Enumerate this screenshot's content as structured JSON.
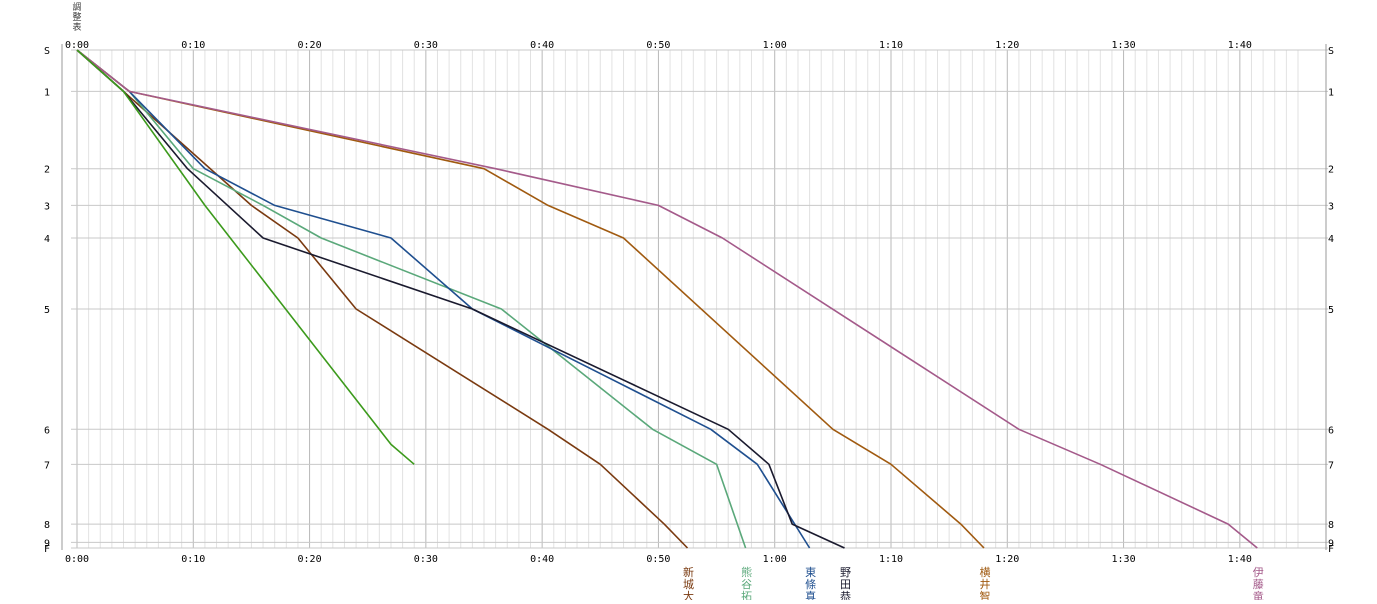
{
  "chart_data": {
    "type": "line",
    "title": "",
    "xlabel": "",
    "ylabel": "",
    "x_unit": "elapsed time (h:mm)",
    "xlim": [
      0,
      105
    ],
    "x_ticks": [
      {
        "value": 0,
        "label": "0:00"
      },
      {
        "value": 10,
        "label": "0:10"
      },
      {
        "value": 20,
        "label": "0:20"
      },
      {
        "value": 30,
        "label": "0:30"
      },
      {
        "value": 40,
        "label": "0:40"
      },
      {
        "value": 50,
        "label": "0:50"
      },
      {
        "value": 60,
        "label": "1:00"
      },
      {
        "value": 70,
        "label": "1:10"
      },
      {
        "value": 80,
        "label": "1:20"
      },
      {
        "value": 90,
        "label": "1:30"
      },
      {
        "value": 100,
        "label": "1:40"
      }
    ],
    "y_stations": [
      {
        "label": "S",
        "dist": 0
      },
      {
        "label": "1",
        "dist": 0.52
      },
      {
        "label": "2",
        "dist": 1.49
      },
      {
        "label": "3",
        "dist": 1.95
      },
      {
        "label": "4",
        "dist": 2.36
      },
      {
        "label": "5",
        "dist": 3.25
      },
      {
        "label": "6",
        "dist": 4.76
      },
      {
        "label": "7",
        "dist": 5.2
      },
      {
        "label": "8",
        "dist": 5.95
      },
      {
        "label": "9",
        "dist": 6.18
      },
      {
        "label": "F",
        "dist": 6.25
      }
    ],
    "grid": true,
    "legend": "runner names written vertically below each line's finish",
    "series": [
      {
        "name": "新城大",
        "color": "#7a3a10",
        "x": [
          0,
          4,
          15,
          19,
          24,
          40.5,
          45,
          50.5,
          52.5
        ],
        "y": [
          0,
          0.52,
          1.95,
          2.36,
          3.25,
          4.76,
          5.2,
          5.95,
          6.25
        ]
      },
      {
        "name": "熊谷拓",
        "color": "#5aa87a",
        "x": [
          0,
          4.5,
          10,
          16,
          21,
          36.5,
          49.5,
          55,
          57.5
        ],
        "y": [
          0,
          0.52,
          1.49,
          1.95,
          2.36,
          3.25,
          4.76,
          5.2,
          6.25
        ]
      },
      {
        "name": "東條真",
        "color": "#1f4f8f",
        "x": [
          0,
          4.5,
          11,
          17,
          27,
          34,
          54.5,
          58.5,
          63
        ],
        "y": [
          0,
          0.52,
          1.49,
          1.95,
          2.36,
          3.25,
          4.76,
          5.2,
          6.25
        ]
      },
      {
        "name": "野田恭",
        "color": "#1a1a2e",
        "x": [
          0,
          4,
          9.5,
          16,
          34,
          56,
          59.5,
          61.5,
          66
        ],
        "y": [
          0,
          0.52,
          1.49,
          2.36,
          3.25,
          4.76,
          5.2,
          5.95,
          6.25
        ]
      },
      {
        "name": "横井智",
        "color": "#a05a10",
        "x": [
          0,
          4.5,
          35,
          40.5,
          47,
          65,
          70,
          76,
          78
        ],
        "y": [
          0,
          0.52,
          1.49,
          1.95,
          2.36,
          4.76,
          5.2,
          5.95,
          6.25
        ]
      },
      {
        "name": "伊藤竜",
        "color": "#a45a8a",
        "x": [
          0,
          4.5,
          36,
          50,
          55.5,
          81,
          88,
          99,
          101.5
        ],
        "y": [
          0,
          0.52,
          1.49,
          1.95,
          2.36,
          4.76,
          5.2,
          5.95,
          6.25
        ]
      },
      {
        "name": "",
        "color": "#3c9a1c",
        "x": [
          0,
          4,
          11,
          27,
          29
        ],
        "y": [
          0,
          0.52,
          1.95,
          4.95,
          5.2
        ]
      }
    ],
    "top_left_mark": "調整表"
  }
}
